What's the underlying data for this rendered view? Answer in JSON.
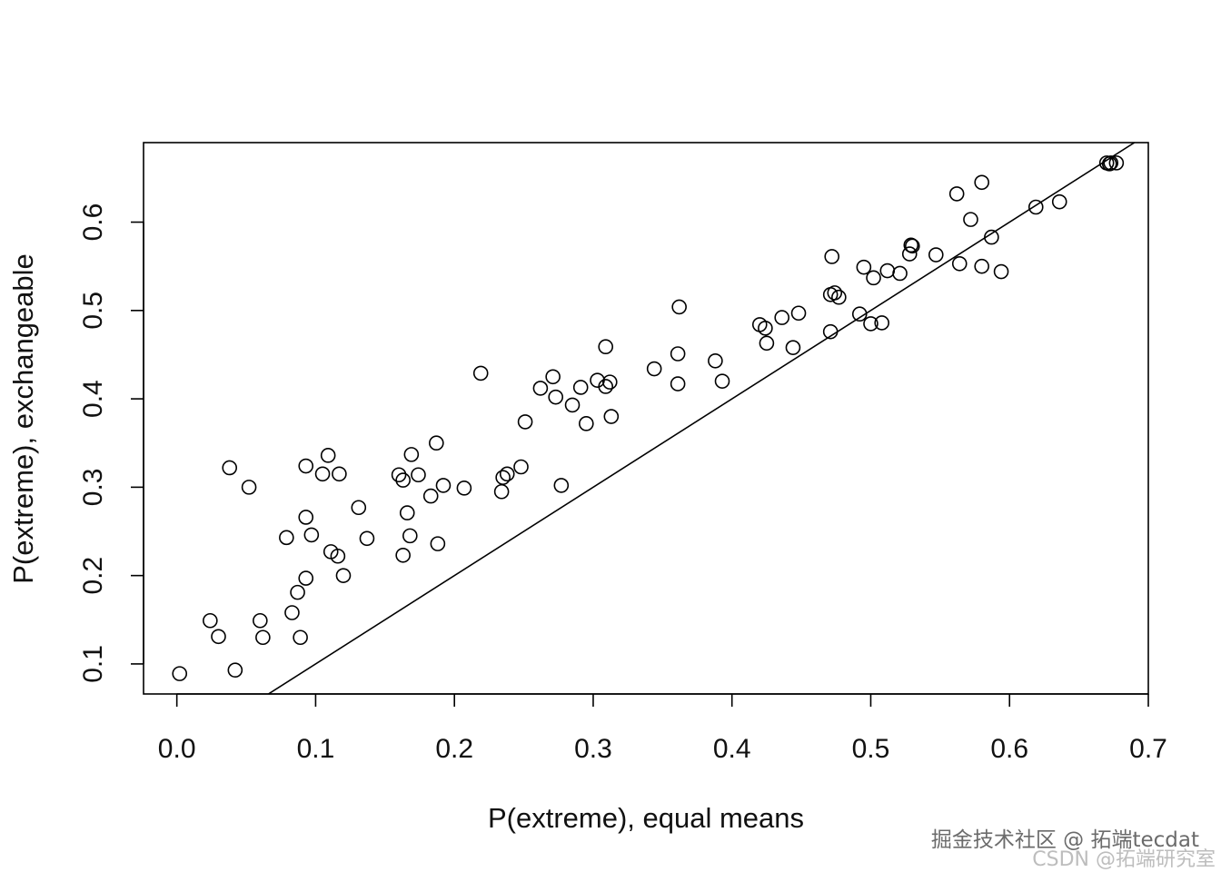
{
  "chart_data": {
    "type": "scatter",
    "title": "",
    "xlabel": "P(extreme), equal means",
    "ylabel": "P(extreme), exchangeable",
    "xlim": [
      -0.024,
      0.7
    ],
    "ylim": [
      0.066,
      0.69
    ],
    "xticks": [
      0.0,
      0.1,
      0.2,
      0.3,
      0.4,
      0.5,
      0.6,
      0.7
    ],
    "xtick_labels": [
      "0.0",
      "0.1",
      "0.2",
      "0.3",
      "0.4",
      "0.5",
      "0.6",
      "0.7"
    ],
    "yticks": [
      0.1,
      0.2,
      0.3,
      0.4,
      0.5,
      0.6
    ],
    "ytick_labels": [
      "0.1",
      "0.2",
      "0.3",
      "0.4",
      "0.5",
      "0.6"
    ],
    "grid": false,
    "legend": "none",
    "marker": "open-circle",
    "reference_line": {
      "type": "identity",
      "slope": 1,
      "intercept": 0
    },
    "points": [
      [
        0.002,
        0.089
      ],
      [
        0.024,
        0.149
      ],
      [
        0.03,
        0.131
      ],
      [
        0.038,
        0.322
      ],
      [
        0.042,
        0.093
      ],
      [
        0.052,
        0.3
      ],
      [
        0.06,
        0.149
      ],
      [
        0.062,
        0.13
      ],
      [
        0.079,
        0.243
      ],
      [
        0.083,
        0.158
      ],
      [
        0.087,
        0.181
      ],
      [
        0.089,
        0.13
      ],
      [
        0.093,
        0.324
      ],
      [
        0.093,
        0.197
      ],
      [
        0.093,
        0.266
      ],
      [
        0.097,
        0.246
      ],
      [
        0.105,
        0.315
      ],
      [
        0.109,
        0.336
      ],
      [
        0.111,
        0.227
      ],
      [
        0.116,
        0.222
      ],
      [
        0.117,
        0.315
      ],
      [
        0.12,
        0.2
      ],
      [
        0.131,
        0.277
      ],
      [
        0.137,
        0.242
      ],
      [
        0.16,
        0.314
      ],
      [
        0.163,
        0.308
      ],
      [
        0.163,
        0.223
      ],
      [
        0.166,
        0.271
      ],
      [
        0.168,
        0.245
      ],
      [
        0.169,
        0.337
      ],
      [
        0.174,
        0.314
      ],
      [
        0.183,
        0.29
      ],
      [
        0.187,
        0.35
      ],
      [
        0.188,
        0.236
      ],
      [
        0.192,
        0.302
      ],
      [
        0.207,
        0.299
      ],
      [
        0.219,
        0.429
      ],
      [
        0.234,
        0.295
      ],
      [
        0.235,
        0.311
      ],
      [
        0.238,
        0.315
      ],
      [
        0.248,
        0.323
      ],
      [
        0.251,
        0.374
      ],
      [
        0.262,
        0.412
      ],
      [
        0.271,
        0.425
      ],
      [
        0.273,
        0.402
      ],
      [
        0.277,
        0.302
      ],
      [
        0.285,
        0.393
      ],
      [
        0.291,
        0.413
      ],
      [
        0.295,
        0.372
      ],
      [
        0.303,
        0.421
      ],
      [
        0.309,
        0.459
      ],
      [
        0.309,
        0.414
      ],
      [
        0.312,
        0.419
      ],
      [
        0.313,
        0.38
      ],
      [
        0.344,
        0.434
      ],
      [
        0.361,
        0.451
      ],
      [
        0.361,
        0.417
      ],
      [
        0.362,
        0.504
      ],
      [
        0.388,
        0.443
      ],
      [
        0.393,
        0.42
      ],
      [
        0.42,
        0.484
      ],
      [
        0.424,
        0.48
      ],
      [
        0.425,
        0.463
      ],
      [
        0.436,
        0.492
      ],
      [
        0.444,
        0.458
      ],
      [
        0.448,
        0.497
      ],
      [
        0.471,
        0.518
      ],
      [
        0.471,
        0.476
      ],
      [
        0.472,
        0.561
      ],
      [
        0.474,
        0.52
      ],
      [
        0.477,
        0.515
      ],
      [
        0.492,
        0.496
      ],
      [
        0.495,
        0.549
      ],
      [
        0.5,
        0.485
      ],
      [
        0.502,
        0.537
      ],
      [
        0.508,
        0.486
      ],
      [
        0.512,
        0.545
      ],
      [
        0.521,
        0.542
      ],
      [
        0.528,
        0.564
      ],
      [
        0.529,
        0.574
      ],
      [
        0.53,
        0.573
      ],
      [
        0.547,
        0.563
      ],
      [
        0.562,
        0.632
      ],
      [
        0.564,
        0.553
      ],
      [
        0.572,
        0.603
      ],
      [
        0.58,
        0.645
      ],
      [
        0.58,
        0.55
      ],
      [
        0.587,
        0.583
      ],
      [
        0.594,
        0.544
      ],
      [
        0.619,
        0.617
      ],
      [
        0.636,
        0.623
      ],
      [
        0.67,
        0.667
      ],
      [
        0.672,
        0.666
      ],
      [
        0.673,
        0.667
      ],
      [
        0.677,
        0.667
      ]
    ]
  },
  "watermark": {
    "line1": "掘金技术社区 @ 拓端tecdat",
    "line2": "CSDN @拓端研究室"
  }
}
